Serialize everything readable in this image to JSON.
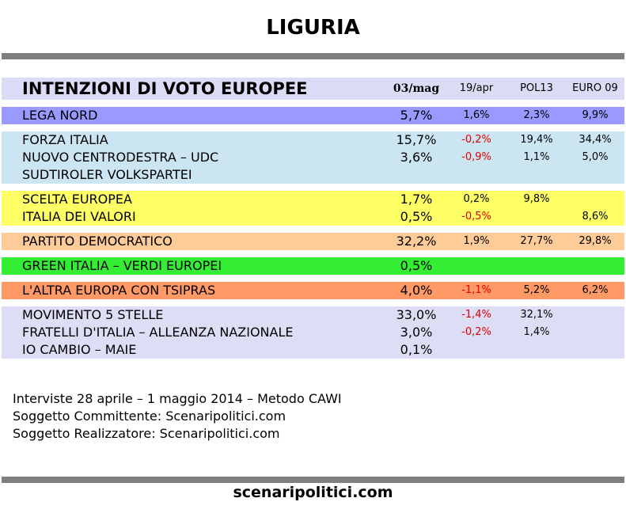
{
  "title": "LIGURIA",
  "header": {
    "title": "INTENZIONI DI VOTO EUROPEE",
    "col1": "03/mag",
    "col2": "19/apr",
    "col3": "POL13",
    "col4": "EURO 09"
  },
  "colors": {
    "lega": "#9999ff",
    "cdx": "#cce5f2",
    "centro": "#ffff66",
    "pd": "#ffcc99",
    "green": "#33ee33",
    "tsipras": "#ff9966",
    "m5s": "#ddddf5",
    "header": "#dcdcf7",
    "bar": "#7f7f7f"
  },
  "groups": [
    {
      "name": "lega",
      "rows": [
        {
          "label": "LEGA NORD",
          "v1": "5,7%",
          "v2": "1,6%",
          "v3": "2,3%",
          "v4": "9,9%"
        }
      ]
    },
    {
      "name": "cdx",
      "rows": [
        {
          "label": "FORZA ITALIA",
          "v1": "15,7%",
          "v2": "-0,2%",
          "v3": "19,4%",
          "v4": "34,4%"
        },
        {
          "label": "NUOVO CENTRODESTRA – UDC",
          "v1": "3,6%",
          "v2": "-0,9%",
          "v3": "1,1%",
          "v4": "5,0%"
        },
        {
          "label": "SUDTIROLER VOLKSPARTEI",
          "v1": "",
          "v2": "",
          "v3": "",
          "v4": ""
        }
      ]
    },
    {
      "name": "centro",
      "rows": [
        {
          "label": "SCELTA EUROPEA",
          "v1": "1,7%",
          "v2": "0,2%",
          "v3": "9,8%",
          "v4": ""
        },
        {
          "label": "ITALIA DEI VALORI",
          "v1": "0,5%",
          "v2": "-0,5%",
          "v3": "",
          "v4": "8,6%"
        }
      ]
    },
    {
      "name": "pd",
      "rows": [
        {
          "label": "PARTITO DEMOCRATICO",
          "v1": "32,2%",
          "v2": "1,9%",
          "v3": "27,7%",
          "v4": "29,8%"
        }
      ]
    },
    {
      "name": "green",
      "rows": [
        {
          "label": "GREEN ITALIA – VERDI EUROPEI",
          "v1": "0,5%",
          "v2": "",
          "v3": "",
          "v4": ""
        }
      ]
    },
    {
      "name": "tsipras",
      "rows": [
        {
          "label": "L'ALTRA EUROPA CON TSIPRAS",
          "v1": "4,0%",
          "v2": "-1,1%",
          "v3": "5,2%",
          "v4": "6,2%"
        }
      ]
    },
    {
      "name": "m5s",
      "rows": [
        {
          "label": "MOVIMENTO 5 STELLE",
          "v1": "33,0%",
          "v2": "-1,4%",
          "v3": "32,1%",
          "v4": ""
        },
        {
          "label": "FRATELLI D'ITALIA – ALLEANZA NAZIONALE",
          "v1": "3,0%",
          "v2": "-0,2%",
          "v3": "1,4%",
          "v4": ""
        },
        {
          "label": "IO CAMBIO – MAIE",
          "v1": "0,1%",
          "v2": "",
          "v3": "",
          "v4": ""
        }
      ]
    }
  ],
  "footer": {
    "line1": "Interviste 28 aprile – 1 maggio 2014 – Metodo CAWI",
    "line2": "Soggetto Committente: Scenaripolitici.com",
    "line3": "Soggetto Realizzatore: Scenaripolitici.com"
  },
  "site": "scenaripolitici.com"
}
